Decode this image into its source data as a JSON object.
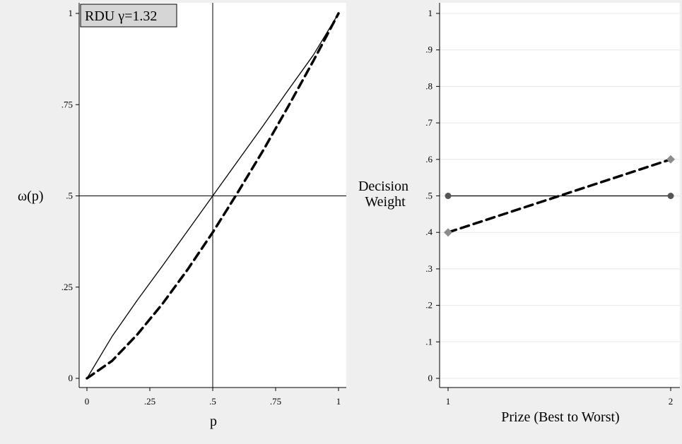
{
  "chart_data": [
    {
      "type": "line",
      "title": "",
      "annotation": "RDU γ=1.32",
      "xlabel": "p",
      "ylabel": "ω(p)",
      "xlim": [
        0,
        1
      ],
      "ylim": [
        0,
        1
      ],
      "x_ticks": [
        "0",
        ".25",
        ".5",
        ".75",
        "1"
      ],
      "y_ticks": [
        "0",
        ".25",
        ".5",
        ".75",
        "1"
      ],
      "reference_lines": {
        "x": 0.5,
        "y": 0.5
      },
      "grid": false,
      "series": [
        {
          "style": "solid-thin",
          "x": [
            0,
            0.1,
            0.2,
            0.3,
            0.4,
            0.5,
            0.6,
            0.7,
            0.8,
            0.9,
            1.0
          ],
          "y": [
            0,
            0.115,
            0.214,
            0.308,
            0.404,
            0.5,
            0.596,
            0.692,
            0.79,
            0.886,
            1.0
          ]
        },
        {
          "style": "dashed-thick",
          "x": [
            0,
            0.1,
            0.2,
            0.3,
            0.4,
            0.5,
            0.6,
            0.7,
            0.8,
            0.9,
            1.0
          ],
          "y": [
            0,
            0.048,
            0.12,
            0.204,
            0.298,
            0.4,
            0.51,
            0.624,
            0.745,
            0.87,
            1.0
          ]
        }
      ]
    },
    {
      "type": "line",
      "title": "",
      "xlabel": "Prize (Best to Worst)",
      "ylabel": "Decision\nWeight",
      "ylabel_lines": [
        "Decision",
        "Weight"
      ],
      "xlim": [
        1,
        2
      ],
      "ylim": [
        0,
        1
      ],
      "x_ticks": [
        "1",
        "2"
      ],
      "y_ticks": [
        "0",
        ".1",
        ".2",
        ".3",
        ".4",
        ".5",
        ".6",
        ".7",
        ".8",
        ".9",
        "1"
      ],
      "grid": true,
      "series": [
        {
          "style": "solid-thin",
          "marker": "circle",
          "color": "#555555",
          "x": [
            1,
            2
          ],
          "y": [
            0.5,
            0.5
          ]
        },
        {
          "style": "dashed-thick",
          "marker": "diamond",
          "color": "#8c8c8c",
          "x": [
            1,
            2
          ],
          "y": [
            0.4,
            0.6
          ]
        }
      ]
    }
  ]
}
